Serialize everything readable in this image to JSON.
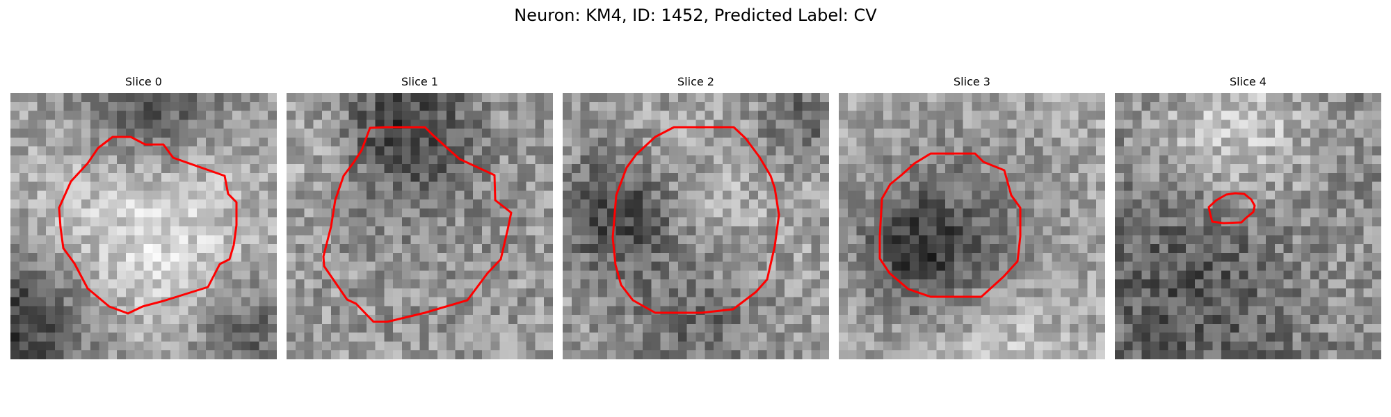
{
  "figure": {
    "title": "Neuron: KM4, ID: 1452, Predicted Label: CV"
  },
  "colors": {
    "contour": "#ff0000",
    "background": "#ffffff"
  },
  "colormap": "gray",
  "slices": [
    {
      "title": "Slice 0",
      "image": "blurred grayscale micrograph patch: bright round region centered, dark regions at top and bottom-left corners",
      "contour_region": "large roughly circular outline around the bright central region"
    },
    {
      "title": "Slice 1",
      "image": "grayscale micrograph patch with mid-grey texture and dark area at top-center",
      "contour_region": "large roughly circular outline centered slightly above middle"
    },
    {
      "title": "Slice 2",
      "image": "grayscale micrograph patch with dark left edge region and dark band at bottom",
      "contour_region": "large rounded outline centered"
    },
    {
      "title": "Slice 3",
      "image": "grayscale micrograph patch with dark interior and lighter surroundings",
      "contour_region": "medium rounded outline slightly below center"
    },
    {
      "title": "Slice 4",
      "image": "grayscale micrograph patch with bright upper region and dark lower-left region",
      "contour_region": "small outline near center-top"
    }
  ]
}
